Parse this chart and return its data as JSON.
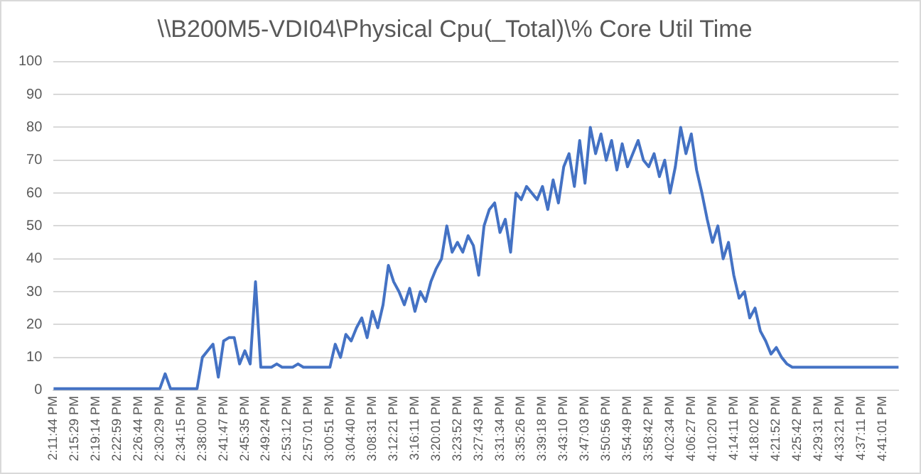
{
  "chart_data": {
    "type": "line",
    "title": "\\\\B200M5-VDI04\\Physical Cpu(_Total)\\% Core Util Time",
    "categories": [
      "2:11:44 PM",
      null,
      null,
      null,
      "2:15:29 PM",
      null,
      null,
      null,
      "2:19:14 PM",
      null,
      null,
      null,
      "2:22:59 PM",
      null,
      null,
      null,
      "2:26:44 PM",
      null,
      null,
      null,
      "2:30:29 PM",
      null,
      null,
      null,
      "2:34:15 PM",
      null,
      null,
      null,
      "2:38:00 PM",
      null,
      null,
      null,
      "2:41:47 PM",
      null,
      null,
      null,
      "2:45:35 PM",
      null,
      null,
      null,
      "2:49:24 PM",
      null,
      null,
      null,
      "2:53:12 PM",
      null,
      null,
      null,
      "2:57:01 PM",
      null,
      null,
      null,
      "3:00:51 PM",
      null,
      null,
      null,
      "3:04:40 PM",
      null,
      null,
      null,
      "3:08:31 PM",
      null,
      null,
      null,
      "3:12:21 PM",
      null,
      null,
      null,
      "3:16:11 PM",
      null,
      null,
      null,
      "3:20:01 PM",
      null,
      null,
      null,
      "3:23:52 PM",
      null,
      null,
      null,
      "3:27:43 PM",
      null,
      null,
      null,
      "3:31:34 PM",
      null,
      null,
      null,
      "3:35:26 PM",
      null,
      null,
      null,
      "3:39:18 PM",
      null,
      null,
      null,
      "3:43:10 PM",
      null,
      null,
      null,
      "3:47:03 PM",
      null,
      null,
      null,
      "3:50:56 PM",
      null,
      null,
      null,
      "3:54:49 PM",
      null,
      null,
      null,
      "3:58:42 PM",
      null,
      null,
      null,
      "4:02:34 PM",
      null,
      null,
      null,
      "4:06:27 PM",
      null,
      null,
      null,
      "4:10:20 PM",
      null,
      null,
      null,
      "4:14:11 PM",
      null,
      null,
      null,
      "4:18:02 PM",
      null,
      null,
      null,
      "4:21:52 PM",
      null,
      null,
      null,
      "4:25:42 PM",
      null,
      null,
      null,
      "4:29:31 PM",
      null,
      null,
      null,
      "4:33:21 PM",
      null,
      null,
      null,
      "4:37:11 PM",
      null,
      null,
      null,
      "4:41:01 PM",
      null,
      null,
      null
    ],
    "series": [
      {
        "color": "#4472c4",
        "values": [
          0.5,
          0.5,
          0.5,
          0.5,
          0.5,
          0.5,
          0.5,
          0.5,
          0.5,
          0.5,
          0.5,
          0.5,
          0.5,
          0.5,
          0.5,
          0.5,
          0.5,
          0.5,
          0.5,
          0.5,
          0.5,
          5,
          0.5,
          0.5,
          0.5,
          0.5,
          0.5,
          0.5,
          10,
          12,
          14,
          4,
          15,
          16,
          16,
          8,
          12,
          8,
          33,
          7,
          7,
          7,
          8,
          7,
          7,
          7,
          8,
          7,
          7,
          7,
          7,
          7,
          7,
          14,
          10,
          17,
          15,
          19,
          22,
          16,
          24,
          19,
          26,
          38,
          33,
          30,
          26,
          31,
          24,
          30,
          27,
          33,
          37,
          40,
          50,
          42,
          45,
          42,
          47,
          44,
          35,
          50,
          55,
          57,
          48,
          52,
          42,
          60,
          58,
          62,
          60,
          58,
          62,
          55,
          64,
          57,
          68,
          72,
          62,
          76,
          63,
          80,
          72,
          78,
          70,
          76,
          67,
          75,
          68,
          72,
          76,
          70,
          68,
          72,
          65,
          70,
          60,
          68,
          80,
          72,
          78,
          67,
          60,
          52,
          45,
          50,
          40,
          45,
          35,
          28,
          30,
          22,
          25,
          18,
          15,
          11,
          13,
          10,
          8,
          7,
          7,
          7,
          7,
          7,
          7,
          7,
          7,
          7,
          7,
          7,
          7,
          7,
          7,
          7,
          7,
          7,
          7,
          7,
          7,
          7
        ]
      }
    ],
    "ylim": [
      0,
      100
    ],
    "yticks": [
      0,
      10,
      20,
      30,
      40,
      50,
      60,
      70,
      80,
      90,
      100
    ],
    "grid": "y",
    "marker": "none",
    "line_style": "solid",
    "legend": false
  }
}
